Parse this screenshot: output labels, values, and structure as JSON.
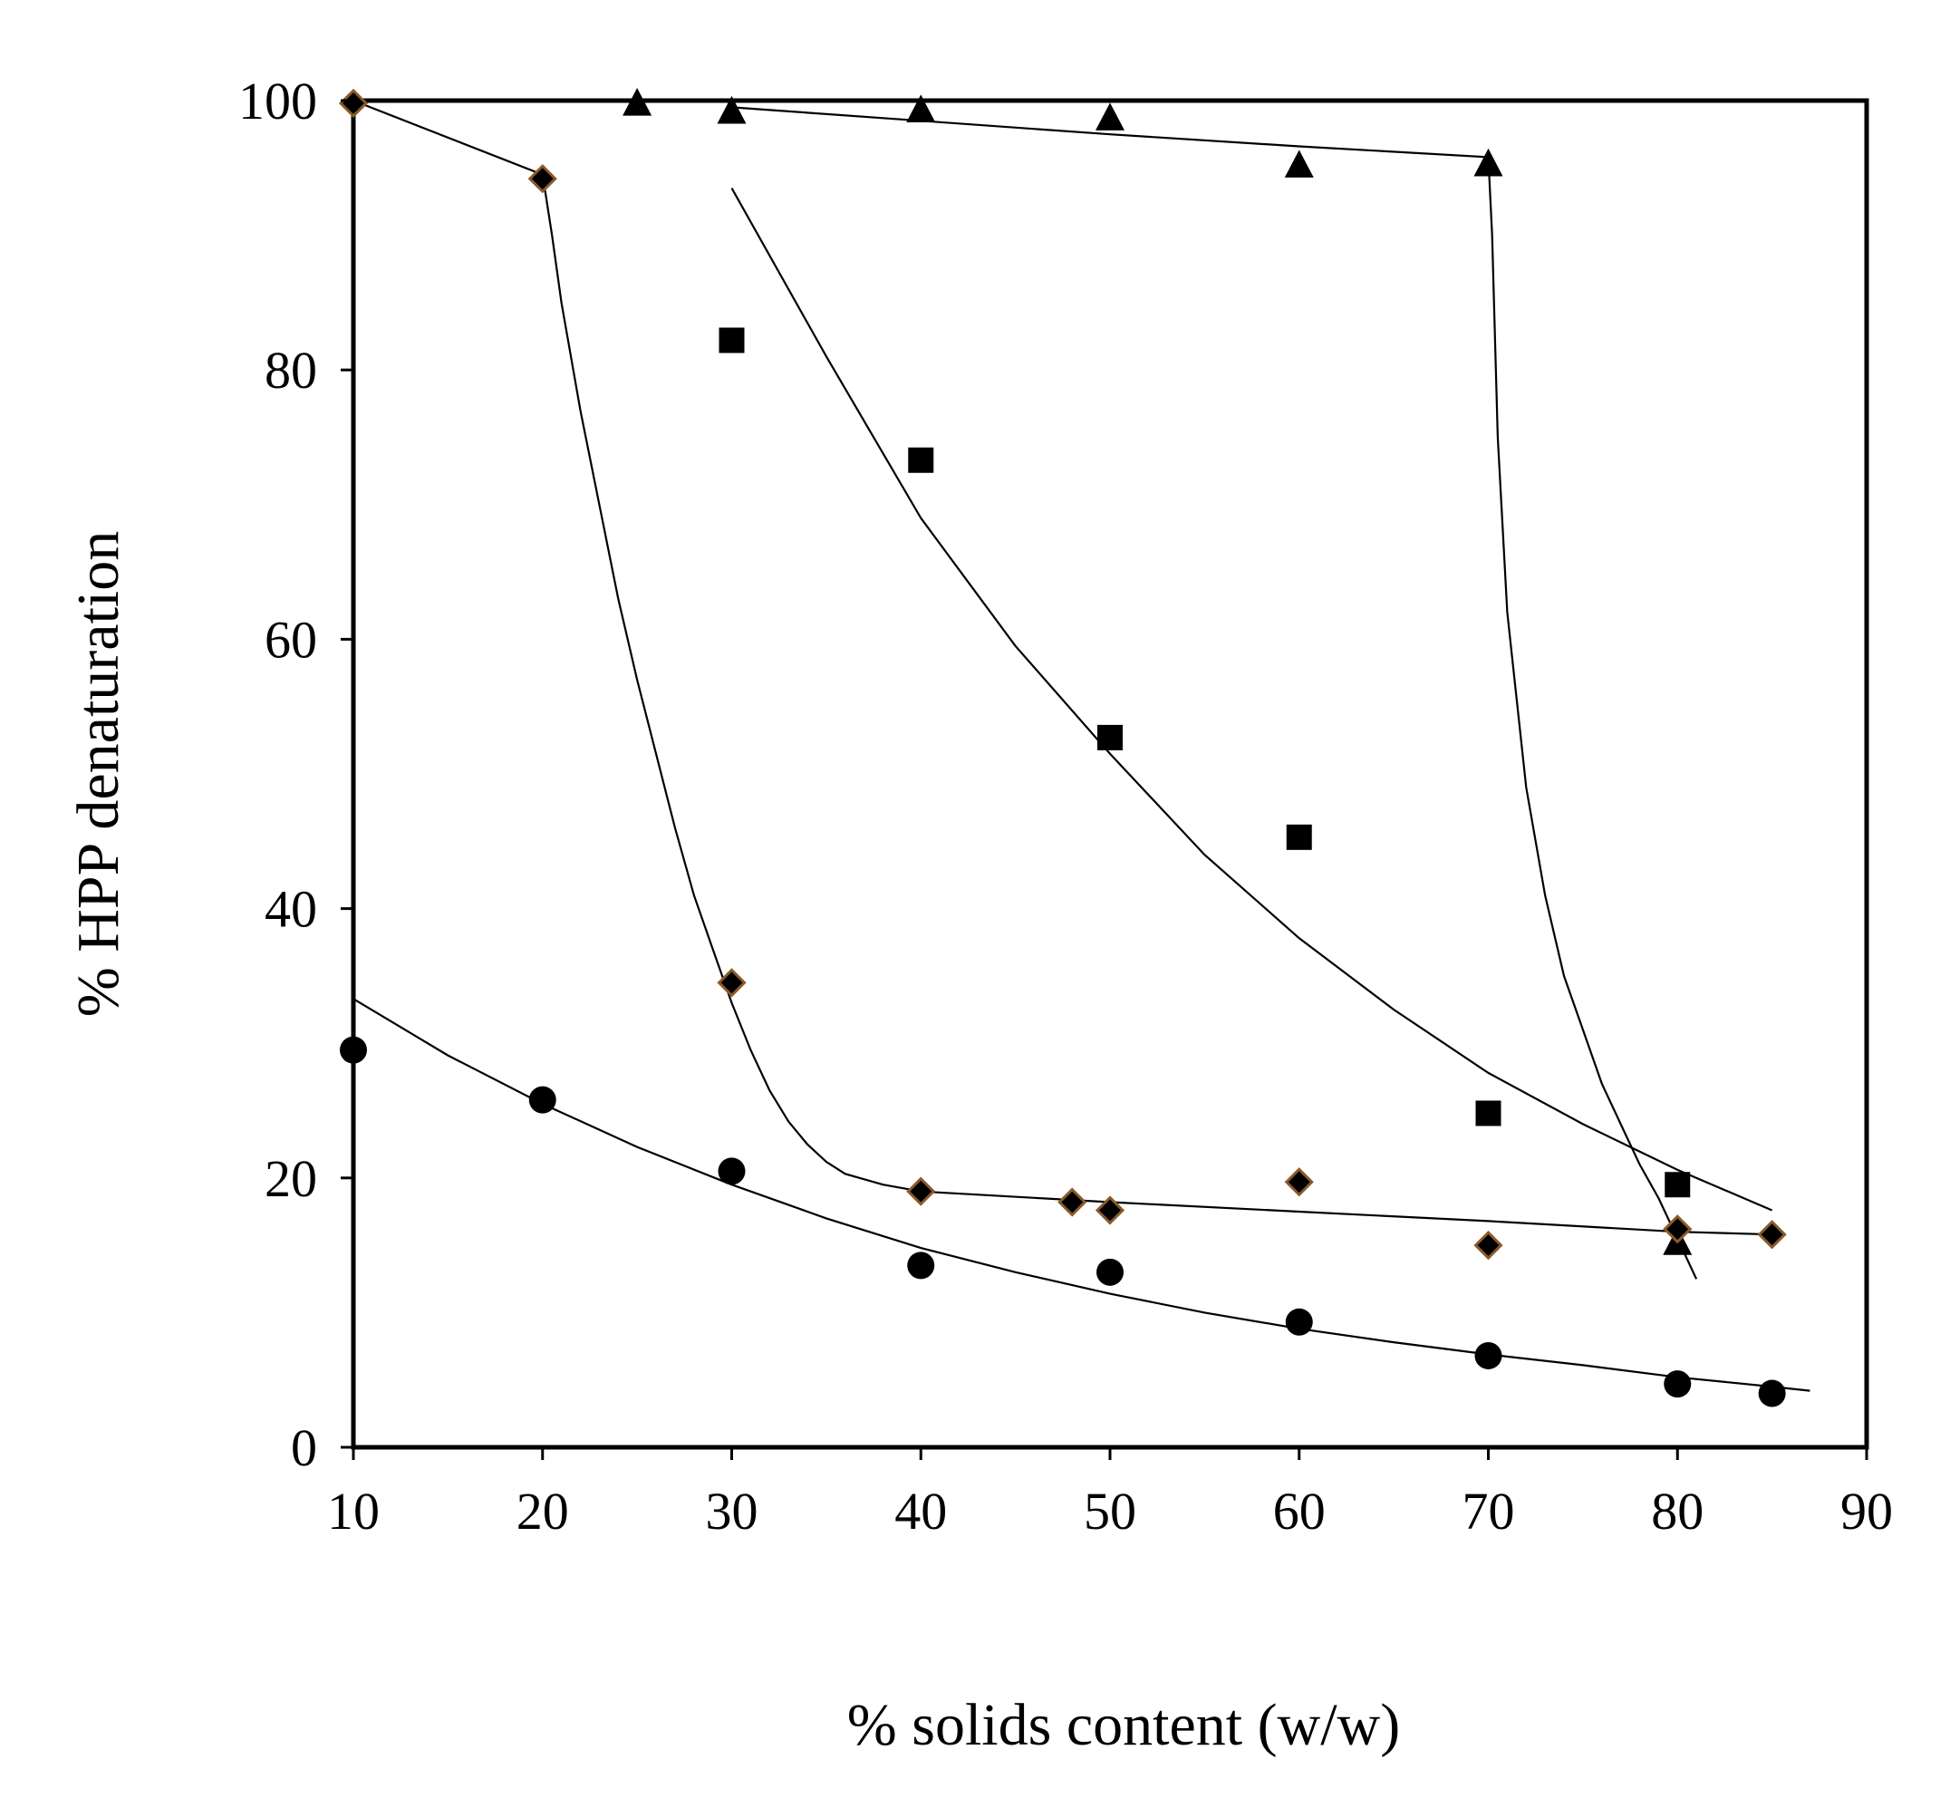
{
  "chart_data": {
    "type": "scatter",
    "xlabel": "% solids content (w/w)",
    "ylabel": "% HPP denaturation",
    "xlim": [
      10,
      90
    ],
    "ylim": [
      0,
      100
    ],
    "xticks": [
      10,
      20,
      30,
      40,
      50,
      60,
      70,
      80,
      90
    ],
    "yticks": [
      0,
      20,
      40,
      60,
      80,
      100
    ],
    "grid": false,
    "legend": "none",
    "series": [
      {
        "marker": "triangle",
        "color": "#000000",
        "x": [
          25,
          30,
          40,
          50,
          60,
          70,
          80
        ],
        "y": [
          99.8,
          99.2,
          99.3,
          98.7,
          95.2,
          95.3,
          15.2
        ],
        "fit": {
          "x": [
            30,
            40,
            50,
            60,
            70,
            70.2,
            70.5,
            71,
            72,
            73,
            74,
            75,
            76,
            77,
            78,
            79,
            80,
            81
          ],
          "y": [
            99.5,
            98.5,
            97.5,
            96.6,
            95.8,
            90,
            75,
            62,
            49,
            41,
            35,
            31,
            27,
            24,
            21,
            18.5,
            15.5,
            12.5
          ]
        }
      },
      {
        "marker": "square",
        "color": "#000000",
        "x": [
          30,
          40,
          50,
          60,
          70,
          80
        ],
        "y": [
          82.2,
          73.3,
          52.7,
          45.3,
          24.8,
          19.5
        ],
        "fit": {
          "x": [
            30,
            35,
            40,
            45,
            50,
            55,
            60,
            65,
            70,
            75,
            80,
            85
          ],
          "y": [
            93.5,
            81,
            69,
            59.5,
            51.5,
            44,
            37.8,
            32.5,
            27.8,
            24,
            20.6,
            17.6
          ]
        }
      },
      {
        "marker": "diamond",
        "color": "#000000",
        "edge": "#8a5a2b",
        "x": [
          10,
          20,
          30,
          40,
          48,
          50,
          60,
          70,
          80,
          85
        ],
        "y": [
          99.8,
          94.2,
          34.5,
          19,
          18.2,
          17.6,
          19.7,
          15,
          16.2,
          15.8
        ],
        "fit": {
          "x": [
            10,
            20,
            20.5,
            21,
            22,
            23,
            24,
            25,
            26,
            27,
            28,
            29,
            30,
            31,
            32,
            33,
            34,
            35,
            36,
            38,
            40,
            50,
            60,
            70,
            80,
            85
          ],
          "y": [
            100,
            94.5,
            90,
            85,
            77,
            70,
            63,
            57,
            51.5,
            46,
            41,
            37,
            33,
            29.5,
            26.5,
            24.2,
            22.5,
            21.2,
            20.3,
            19.5,
            19,
            18.2,
            17.5,
            16.8,
            16,
            15.8
          ]
        }
      },
      {
        "marker": "circle",
        "color": "#000000",
        "x": [
          10,
          20,
          30,
          40,
          50,
          60,
          70,
          80,
          85
        ],
        "y": [
          29.5,
          25.8,
          20.5,
          13.5,
          13,
          9.3,
          6.8,
          4.7,
          4
        ],
        "fit": {
          "x": [
            10,
            15,
            20,
            25,
            30,
            35,
            40,
            45,
            50,
            55,
            60,
            65,
            70,
            75,
            80,
            85,
            87
          ],
          "y": [
            33.3,
            29.1,
            25.5,
            22.3,
            19.5,
            17,
            14.8,
            13,
            11.4,
            10,
            8.8,
            7.8,
            6.9,
            6.1,
            5.2,
            4.5,
            4.2
          ]
        }
      }
    ]
  }
}
